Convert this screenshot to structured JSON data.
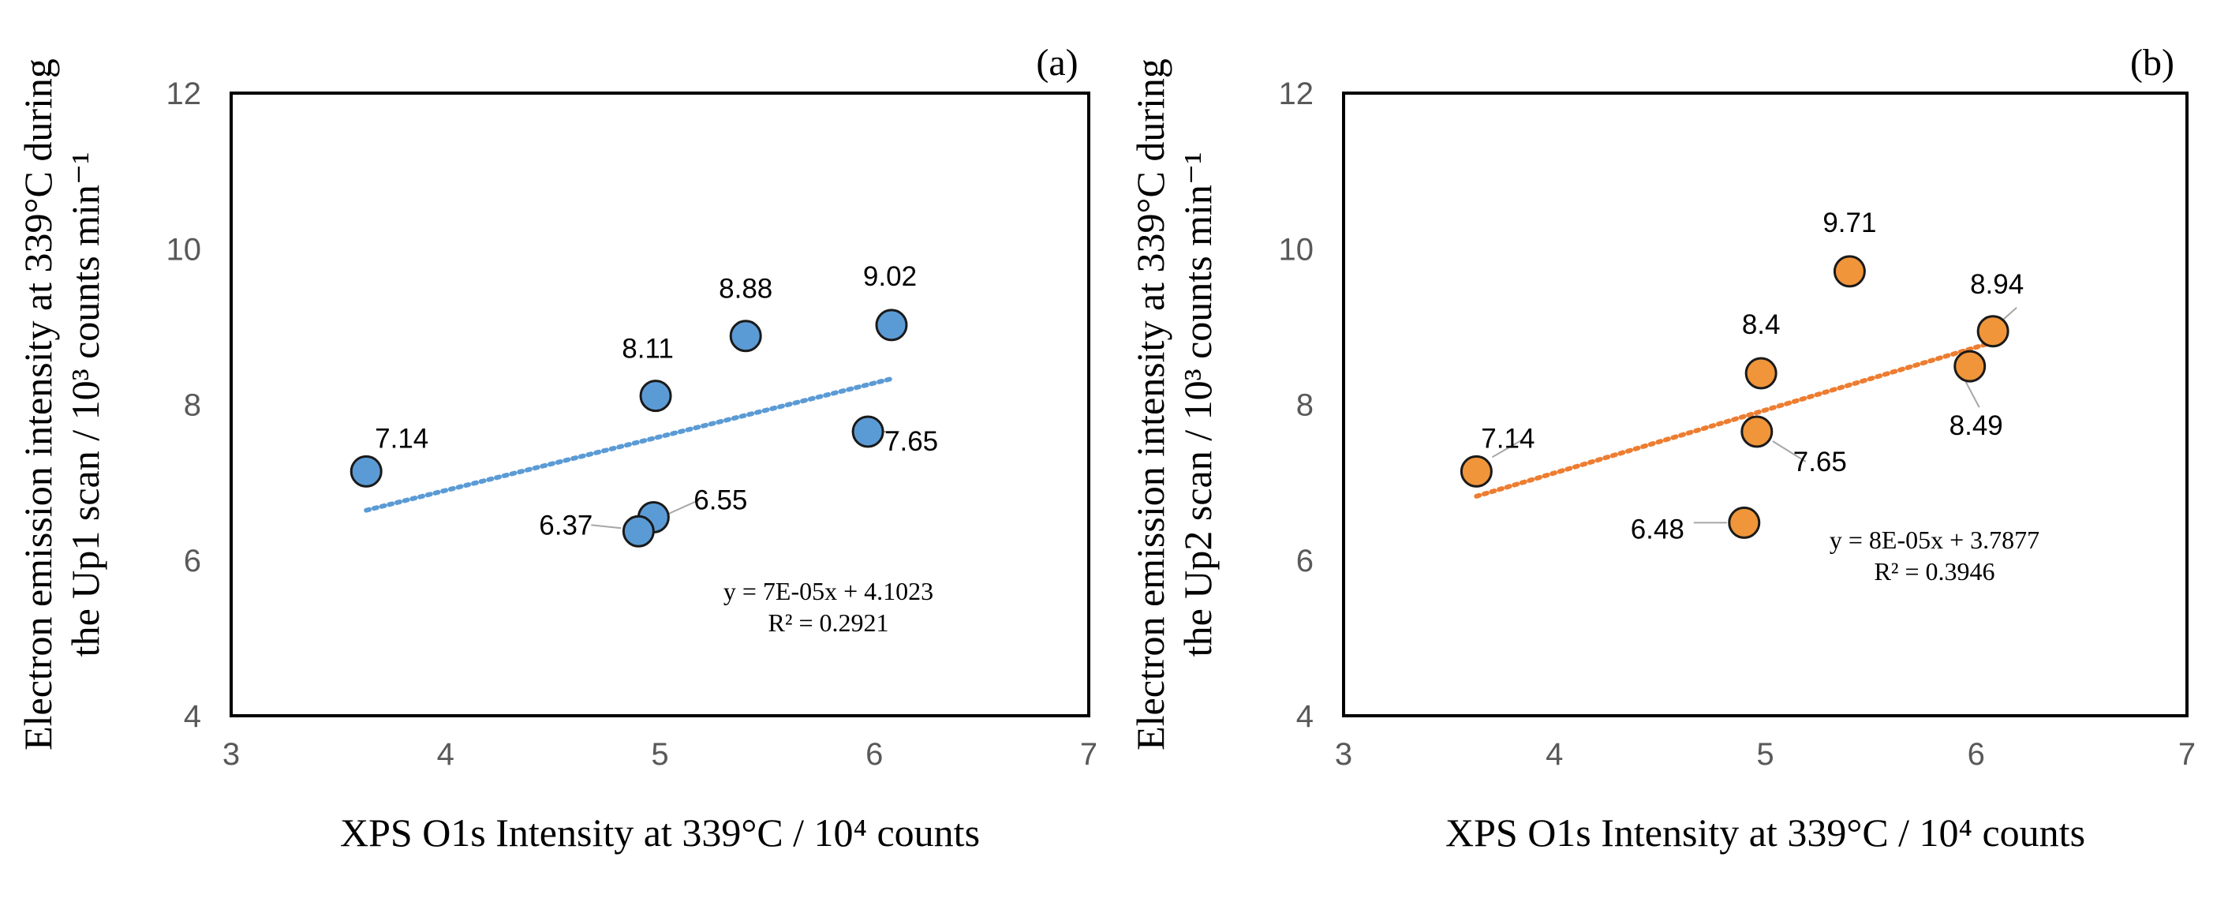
{
  "chart_data": [
    {
      "type": "scatter",
      "panel_label": "(a)",
      "xlabel": "XPS O1s Intensity at 339°C / 10⁴ counts",
      "ylabel_line1": "Electron emission intensity at 339°C during",
      "ylabel_line2": "the Up1 scan / 10³ counts min⁻¹",
      "xlim": [
        3,
        7
      ],
      "ylim": [
        4,
        12
      ],
      "xticks": [
        "3",
        "4",
        "5",
        "6",
        "7"
      ],
      "yticks": [
        "4",
        "6",
        "8",
        "10",
        "12"
      ],
      "color": "#5b9bd5",
      "trend_color": "#5b9bd5",
      "points": [
        {
          "x": 3.63,
          "y": 7.14,
          "label": "7.14"
        },
        {
          "x": 4.98,
          "y": 8.11,
          "label": "8.11"
        },
        {
          "x": 5.4,
          "y": 8.88,
          "label": "8.88"
        },
        {
          "x": 6.08,
          "y": 9.02,
          "label": "9.02"
        },
        {
          "x": 5.97,
          "y": 7.65,
          "label": "7.65"
        },
        {
          "x": 4.97,
          "y": 6.55,
          "label": "6.55"
        },
        {
          "x": 4.9,
          "y": 6.37,
          "label": "6.37"
        }
      ],
      "trendline": {
        "x": [
          3.63,
          6.08
        ],
        "y": [
          6.64,
          8.33
        ]
      },
      "equation": "y = 7E-05x + 4.1023",
      "r_squared": "R² = 0.2921"
    },
    {
      "type": "scatter",
      "panel_label": "(b)",
      "xlabel": "XPS O1s Intensity at 339°C / 10⁴ counts",
      "ylabel_line1": "Electron emission intensity at 339°C during",
      "ylabel_line2": "the Up2 scan / 10³ counts min⁻¹",
      "xlim": [
        3,
        7
      ],
      "ylim": [
        4,
        12
      ],
      "xticks": [
        "3",
        "4",
        "5",
        "6",
        "7"
      ],
      "yticks": [
        "4",
        "6",
        "8",
        "10",
        "12"
      ],
      "color": "#f0953a",
      "trend_color": "#ed7d31",
      "points": [
        {
          "x": 3.63,
          "y": 7.14,
          "label": "7.14"
        },
        {
          "x": 4.98,
          "y": 8.4,
          "label": "8.4"
        },
        {
          "x": 5.4,
          "y": 9.71,
          "label": "9.71"
        },
        {
          "x": 6.08,
          "y": 8.94,
          "label": "8.94"
        },
        {
          "x": 5.97,
          "y": 8.49,
          "label": "8.49"
        },
        {
          "x": 4.96,
          "y": 7.65,
          "label": "7.65"
        },
        {
          "x": 4.9,
          "y": 6.48,
          "label": "6.48"
        }
      ],
      "trendline": {
        "x": [
          3.63,
          6.08
        ],
        "y": [
          6.82,
          8.8
        ]
      },
      "equation": "y = 8E-05x + 3.7877",
      "r_squared": "R² = 0.3946"
    }
  ]
}
